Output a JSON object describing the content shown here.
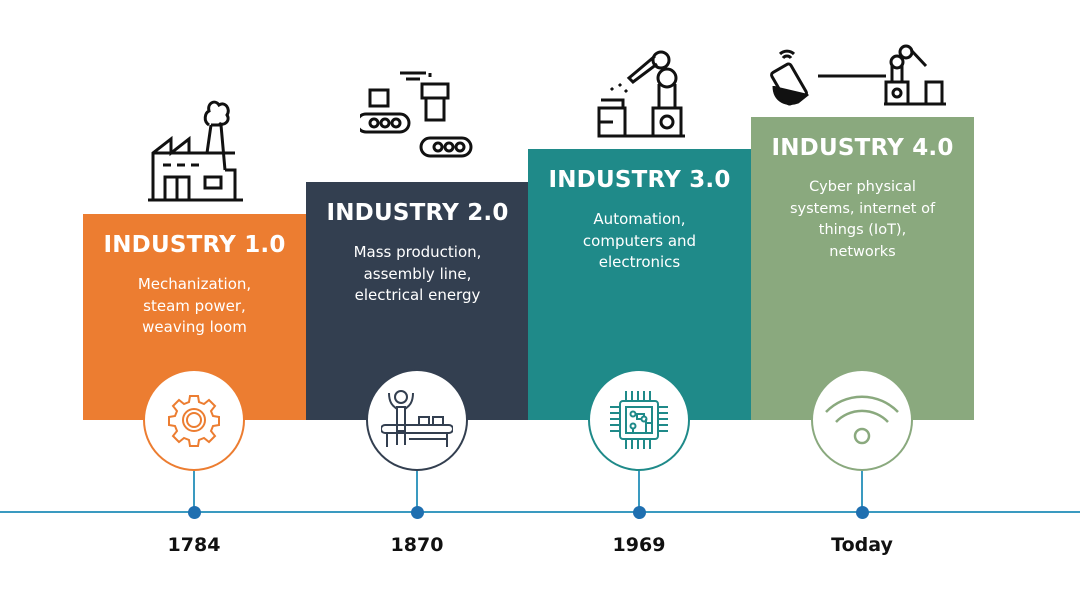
{
  "stages": [
    {
      "title": "INDUSTRY 1.0",
      "desc": [
        "Mechanization,",
        "steam power,",
        "weaving loom"
      ],
      "year": "1784",
      "color": "#ec7d31",
      "top_icon": "factory-icon",
      "circle_icon": "gear-icon"
    },
    {
      "title": "INDUSTRY 2.0",
      "desc": [
        "Mass production,",
        "assembly line,",
        "electrical energy"
      ],
      "year": "1870",
      "color": "#333f50",
      "top_icon": "conveyor-machine-icon",
      "circle_icon": "assembly-line-worker-icon"
    },
    {
      "title": "INDUSTRY 3.0",
      "desc": [
        "Automation,",
        "computers and",
        "electronics"
      ],
      "year": "1969",
      "color": "#1f8a89",
      "top_icon": "robot-arm-icon",
      "circle_icon": "microchip-icon"
    },
    {
      "title": "INDUSTRY 4.0",
      "desc": [
        "Cyber physical",
        "systems, internet of",
        "things (IoT),",
        "networks"
      ],
      "year": "Today",
      "color": "#8aa97e",
      "top_icon": "smartphone-robot-connection-icon",
      "circle_icon": "wifi-icon"
    }
  ],
  "timeline_color": "#3a9ac0"
}
